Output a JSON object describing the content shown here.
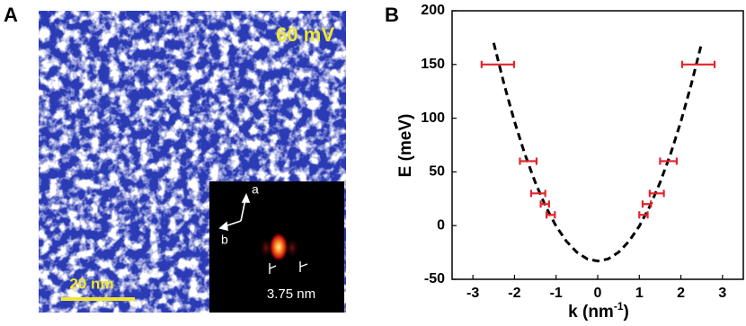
{
  "panel_a": {
    "label": "A",
    "bias": "60 mV",
    "scale_bar": "20 nm",
    "inset": {
      "axis_a": "a",
      "axis_b": "b",
      "spacing": "3.75 nm"
    }
  },
  "chart_data": {
    "type": "errorbar",
    "panel_label": "B",
    "ylabel": "E (meV)",
    "xlabel": "k (nm",
    "xlabel_sup": "-1",
    "xlabel_end": ")",
    "xlim": [
      -3.5,
      3.5
    ],
    "ylim": [
      -50,
      200
    ],
    "xticks": [
      -3,
      -2,
      -1,
      0,
      1,
      2,
      3
    ],
    "yticks": [
      -50,
      0,
      50,
      100,
      150,
      200
    ],
    "points": {
      "color": "#e3242b",
      "x": [
        -2.4,
        -1.67,
        -1.43,
        -1.27,
        -1.13,
        1.1,
        1.18,
        1.42,
        1.7,
        2.42
      ],
      "values": [
        150,
        60,
        30,
        20,
        10,
        10,
        20,
        30,
        60,
        150
      ],
      "xerr": [
        0.39,
        0.2,
        0.17,
        0.1,
        0.1,
        0.1,
        0.1,
        0.17,
        0.2,
        0.39
      ]
    },
    "fit": {
      "color": "#000000",
      "style": "dashed",
      "x": [
        -2.5,
        -2.25,
        -2,
        -1.75,
        -1.5,
        -1.25,
        -1,
        -0.75,
        -0.5,
        -0.25,
        0,
        0.25,
        0.5,
        0.75,
        1,
        1.25,
        1.5,
        1.75,
        2,
        2.25,
        2.5
      ],
      "values": [
        170.1,
        131.5,
        97,
        66.5,
        40.1,
        17.8,
        -0.5,
        -14.7,
        -24.9,
        -31,
        -33,
        -31,
        -24.9,
        -14.7,
        -0.5,
        17.8,
        40.1,
        66.5,
        97,
        131.5,
        170.1
      ]
    }
  }
}
